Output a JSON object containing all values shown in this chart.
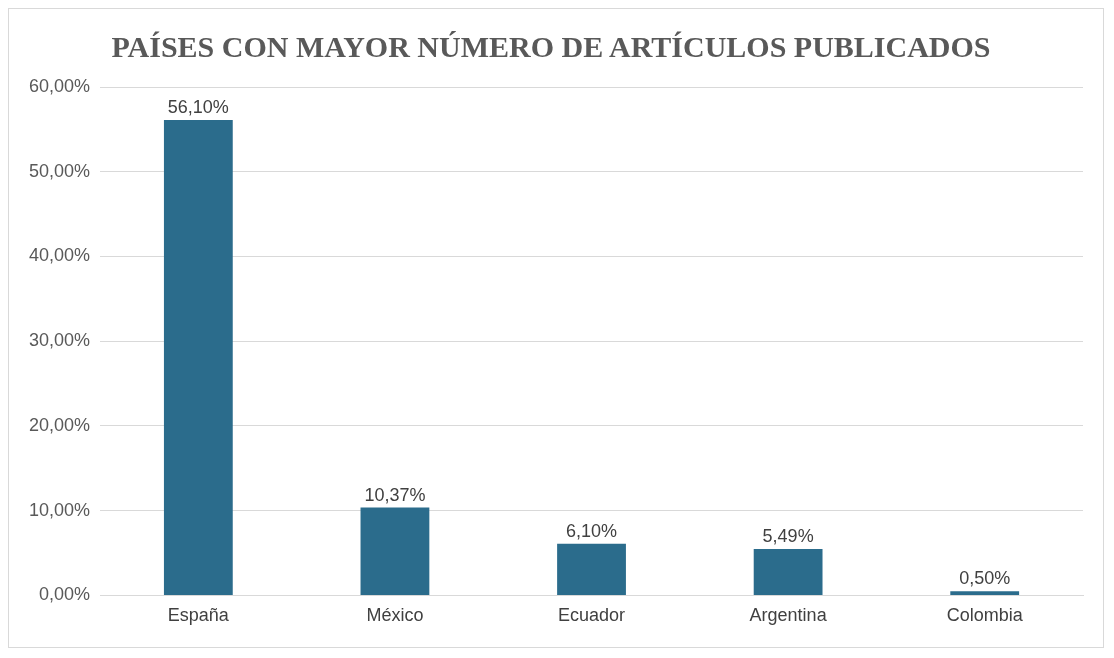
{
  "chart_data": {
    "type": "bar",
    "title": "PAÍSES CON MAYOR NÚMERO DE ARTÍCULOS PUBLICADOS",
    "categories": [
      "España",
      "México",
      "Ecuador",
      "Argentina",
      "Colombia"
    ],
    "values": [
      56.1,
      10.37,
      6.1,
      5.49,
      0.5
    ],
    "value_labels": [
      "56,10%",
      "10,37%",
      "6,10%",
      "5,49%",
      "0,50%"
    ],
    "color": "#2b6c8c",
    "ylim": [
      0,
      60
    ],
    "yticks": [
      {
        "value": 0,
        "label": "0,00%"
      },
      {
        "value": 10,
        "label": "10,00%"
      },
      {
        "value": 20,
        "label": "20,00%"
      },
      {
        "value": 30,
        "label": "30,00%"
      },
      {
        "value": 40,
        "label": "40,00%"
      },
      {
        "value": 50,
        "label": "50,00%"
      },
      {
        "value": 60,
        "label": "60,00%"
      }
    ],
    "grid": "y",
    "legend": false
  }
}
